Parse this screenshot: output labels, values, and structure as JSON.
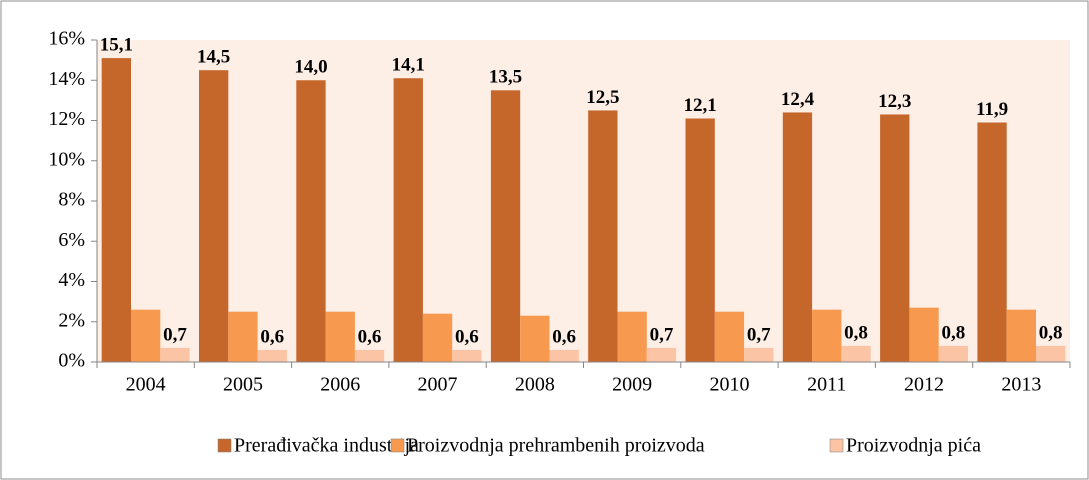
{
  "chart_data": {
    "type": "bar",
    "categories": [
      "2004",
      "2005",
      "2006",
      "2007",
      "2008",
      "2009",
      "2010",
      "2011",
      "2012",
      "2013"
    ],
    "series": [
      {
        "name": "Prerađivačka industrija",
        "color": "#c5662b",
        "values": [
          15.1,
          14.5,
          14.0,
          14.1,
          13.5,
          12.5,
          12.1,
          12.4,
          12.3,
          11.9
        ],
        "value_labels": [
          "15,1",
          "14,5",
          "14,0",
          "14,1",
          "13,5",
          "12,5",
          "12,1",
          "12,4",
          "12,3",
          "11,9"
        ]
      },
      {
        "name": "Proizvodnja prehrambenih proizvoda",
        "color": "#f79a50",
        "values": [
          2.6,
          2.5,
          2.5,
          2.4,
          2.3,
          2.5,
          2.5,
          2.6,
          2.7,
          2.6
        ]
      },
      {
        "name": "Proizvodnja pića",
        "color": "#fbc4a4",
        "values": [
          0.7,
          0.6,
          0.6,
          0.6,
          0.6,
          0.7,
          0.7,
          0.8,
          0.8,
          0.8
        ],
        "value_labels": [
          "0,7",
          "0,6",
          "0,6",
          "0,6",
          "0,6",
          "0,7",
          "0,7",
          "0,8",
          "0,8",
          "0,8"
        ]
      }
    ],
    "ylim": [
      0,
      16
    ],
    "yticks": [
      {
        "value": 0,
        "label": "0%"
      },
      {
        "value": 2,
        "label": "2%"
      },
      {
        "value": 4,
        "label": "4%"
      },
      {
        "value": 6,
        "label": "6%"
      },
      {
        "value": 8,
        "label": "8%"
      },
      {
        "value": 10,
        "label": "10%"
      },
      {
        "value": 12,
        "label": "12%"
      },
      {
        "value": 14,
        "label": "14%"
      },
      {
        "value": 16,
        "label": "16%"
      }
    ],
    "grid": false,
    "legend": "bottom"
  }
}
